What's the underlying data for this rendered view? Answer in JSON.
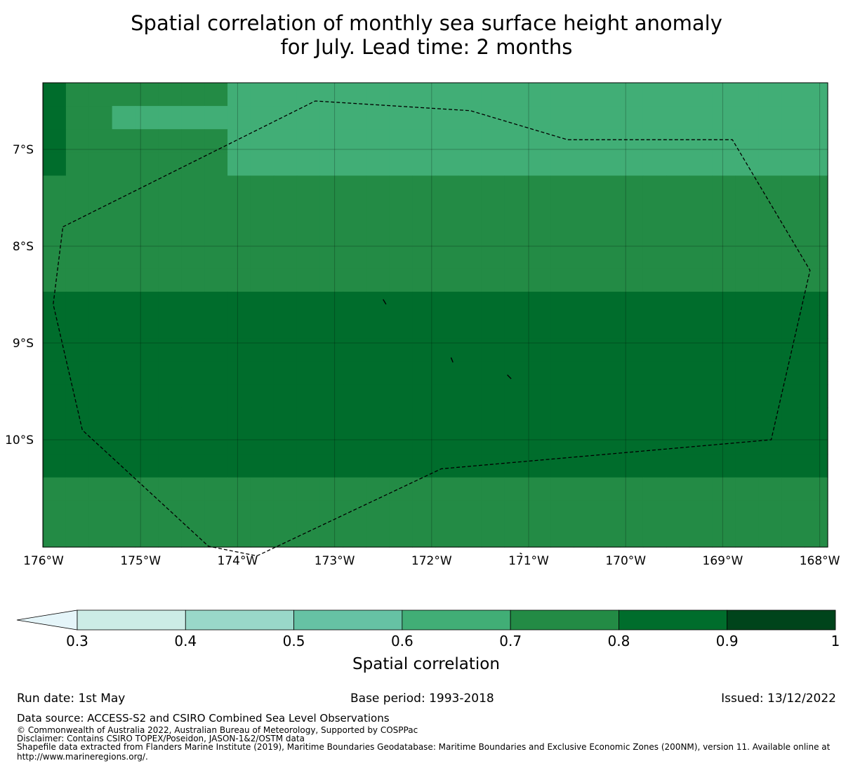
{
  "title": {
    "line1": "Spatial correlation of monthly sea surface height anomaly",
    "line2": "for July. Lead time: 2 months"
  },
  "map": {
    "lat_ticks": [
      "7°S",
      "8°S",
      "9°S",
      "10°S"
    ],
    "lon_ticks": [
      "176°W",
      "175°W",
      "174°W",
      "173°W",
      "172°W",
      "171°W",
      "170°W",
      "169°W",
      "168°W"
    ],
    "lon_range": [
      -176.0,
      -167.9
    ],
    "lat_range": [
      -11.2,
      -6.3
    ],
    "grid_step_deg": 0.25,
    "correlation_grid_top_to_bottom": [
      "8777777766666666666666666666666666",
      "8776666666666666666666666666666666",
      "8777777766666666666666666666666666",
      "8777777766666666666666666666666666",
      "7777777777777777777777777777777777",
      "7777777777777777777777777777777777",
      "7777777777777777777777777777777777",
      "7777777777777777777777777777777777",
      "7777777777777777777777777777777777",
      "8888888888888888888888888888888888",
      "8888888888888888888888888888888888",
      "8888888888888888888888888888888888",
      "8888888888888888888888888888888888",
      "8888888888888888888888888888888888",
      "8888888888888888888888888888888888",
      "8888888888888888888888888888888888",
      "8888888888888888888888888888888888",
      "7777777777777777777777777777777777",
      "7777777777777777777777777777777777",
      "7777777777777777777777777777777777"
    ],
    "eez_boundary_lonlat": [
      [
        -175.8,
        -7.8
      ],
      [
        -173.2,
        -6.5
      ],
      [
        -171.6,
        -6.6
      ],
      [
        -170.6,
        -6.9
      ],
      [
        -168.9,
        -6.9
      ],
      [
        -168.1,
        -8.25
      ],
      [
        -168.5,
        -10.0
      ],
      [
        -171.9,
        -10.3
      ],
      [
        -173.8,
        -11.2
      ],
      [
        -174.3,
        -11.1
      ],
      [
        -175.6,
        -9.9
      ],
      [
        -175.9,
        -8.6
      ],
      [
        -175.8,
        -7.8
      ]
    ],
    "islands_lonlat": [
      [
        [
          -172.5,
          -8.55
        ],
        [
          -172.47,
          -8.6
        ]
      ],
      [
        [
          -171.8,
          -9.15
        ],
        [
          -171.78,
          -9.2
        ]
      ],
      [
        [
          -171.22,
          -9.33
        ],
        [
          -171.18,
          -9.37
        ]
      ],
      [
        [
          -171.09,
          -11.17
        ],
        [
          -171.07,
          -11.18
        ]
      ]
    ]
  },
  "colorbar": {
    "label": "Spatial correlation",
    "tick_labels": [
      "0.3",
      "0.4",
      "0.5",
      "0.6",
      "0.7",
      "0.8",
      "0.9",
      "1"
    ],
    "bin_colors": [
      "#ccece6",
      "#99d8c9",
      "#66c2a4",
      "#41ae76",
      "#238b45",
      "#006d2c",
      "#00441b"
    ],
    "under_color": "#e5f5f9"
  },
  "footer": {
    "run_date": "Run date: 1st May",
    "base_period": "Base period: 1993-2018",
    "issued": "Issued: 13/12/2022",
    "data_source": "Data source: ACCESS-S2 and CSIRO Combined Sea Level Observations",
    "copyright": "© Commonwealth of Australia 2022, Australian Bureau of Meteorology, Supported by COSPPac",
    "disclaimer": "Disclaimer: Contains CSIRO TOPEX/Poseidon, JASON-1&2/OSTM data",
    "shapefile_line1": "Shapefile data extracted from Flanders Marine Institute (2019), Maritime Boundaries Geodatabase: Maritime Boundaries and Exclusive Economic Zones (200NM), version 11. Available online at",
    "shapefile_line2": "http://www.marineregions.org/."
  }
}
